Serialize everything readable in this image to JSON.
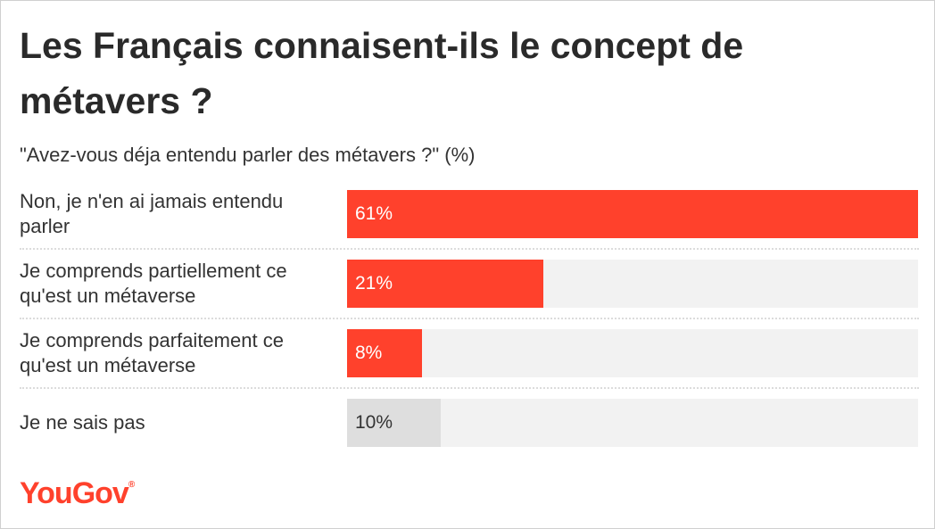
{
  "title": "Les Français connaisent-ils le concept de métavers ?",
  "subtitle": "\"Avez-vous déja entendu parler des métavers ?\" (%)",
  "brand": {
    "name": "YouGov",
    "mark": "®",
    "color": "#ff412c"
  },
  "colors": {
    "accent": "#ff412c",
    "neutral": "#dedede",
    "track": "#f2f2f2"
  },
  "chart_data": {
    "type": "bar",
    "orientation": "horizontal",
    "title": "Les Français connaisent-ils le concept de métavers ?",
    "subtitle": "\"Avez-vous déja entendu parler des métavers ?\" (%)",
    "xlim": [
      0,
      61
    ],
    "categories": [
      "Non, je n'en ai jamais entendu parler",
      "Je comprends partiellement ce qu'est un métaverse",
      "Je comprends parfaitement ce qu'est un métaverse",
      "Je ne sais pas"
    ],
    "values": [
      61,
      21,
      8,
      10
    ],
    "labels": [
      "61%",
      "21%",
      "8%",
      "10%"
    ],
    "bar_colors": [
      "#ff412c",
      "#ff412c",
      "#ff412c",
      "#dedede"
    ]
  }
}
